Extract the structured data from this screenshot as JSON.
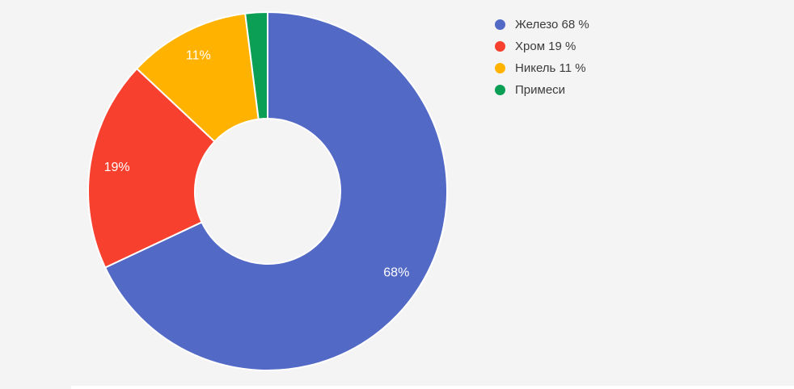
{
  "page": {
    "background_color": "#F4F4F5",
    "card_edge_color": "#FFFFFF"
  },
  "chart_data": {
    "type": "pie",
    "title": "",
    "donut": true,
    "donut_hole_ratio": 0.4,
    "start_angle_deg": 0,
    "direction": "clockwise",
    "legend_position": "right",
    "grid": false,
    "slice_border_color": "#FFFFFF",
    "slice_label_color": "#FFFFFF",
    "legend_text_color": "#3B3B3B",
    "hole_color": "#FFFFFF",
    "series": [
      {
        "label": "Железо",
        "value": 68,
        "slice_label": "68%",
        "legend_label": "Железо 68 %",
        "color": "#5369C6"
      },
      {
        "label": "Хром",
        "value": 19,
        "slice_label": "19%",
        "legend_label": "Хром 19 %",
        "color": "#F8402F"
      },
      {
        "label": "Никель",
        "value": 11,
        "slice_label": "11%",
        "legend_label": "Никель 11 %",
        "color": "#FFB300"
      },
      {
        "label": "Примеси",
        "value": 2,
        "slice_label": "",
        "legend_label": "Примеси",
        "color": "#0A9F54"
      }
    ]
  }
}
